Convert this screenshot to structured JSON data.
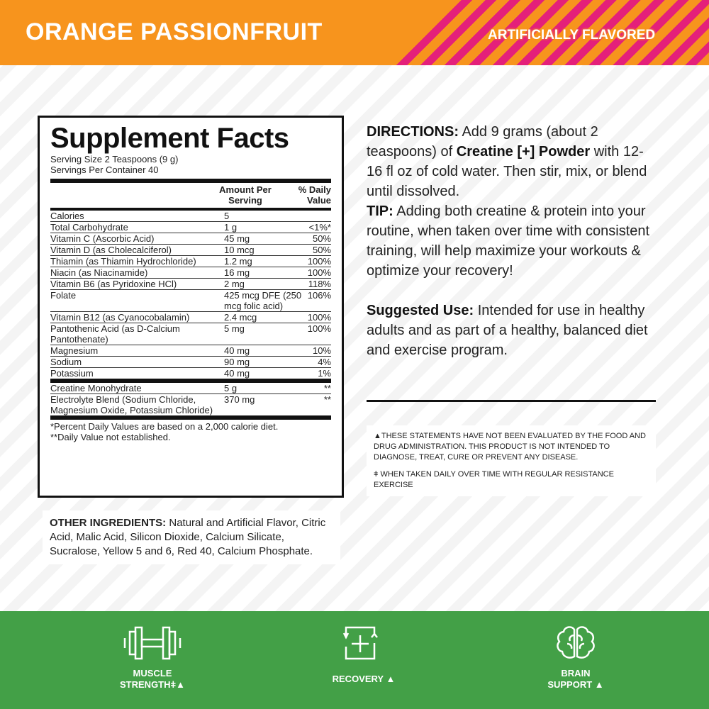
{
  "header": {
    "flavor": "ORANGE PASSIONFRUIT",
    "badge": "ARTIFICIALLY FLAVORED",
    "colors": {
      "orange": "#f7941d",
      "magenta": "#e4207a"
    }
  },
  "facts": {
    "title": "Supplement Facts",
    "serving_size": "Serving Size 2 Teaspoons (9 g)",
    "servings": "Servings Per Container 40",
    "col_amount": "Amount Per Serving",
    "col_dv": "% Daily Value",
    "rows": [
      {
        "name": "Calories",
        "amount": "5",
        "dv": ""
      },
      {
        "name": "Total Carbohydrate",
        "amount": "1 g",
        "dv": "<1%*"
      },
      {
        "name": "Vitamin C (Ascorbic Acid)",
        "amount": "45 mg",
        "dv": "50%"
      },
      {
        "name": "Vitamin D (as Cholecalciferol)",
        "amount": "10 mcg",
        "dv": "50%"
      },
      {
        "name": "Thiamin (as Thiamin Hydrochloride)",
        "amount": "1.2 mg",
        "dv": "100%"
      },
      {
        "name": "Niacin (as Niacinamide)",
        "amount": "16 mg",
        "dv": "100%"
      },
      {
        "name": "Vitamin B6 (as Pyridoxine HCl)",
        "amount": "2 mg",
        "dv": "118%"
      },
      {
        "name": "Folate",
        "amount": "425 mcg DFE (250 mcg folic acid)",
        "dv": "106%"
      },
      {
        "name": "Vitamin B12 (as Cyanocobalamin)",
        "amount": "2.4 mcg",
        "dv": "100%"
      },
      {
        "name": "Pantothenic Acid (as D-Calcium Pantothenate)",
        "amount": "5 mg",
        "dv": "100%"
      },
      {
        "name": "Magnesium",
        "amount": "40 mg",
        "dv": "10%"
      },
      {
        "name": "Sodium",
        "amount": "90 mg",
        "dv": "4%"
      },
      {
        "name": "Potassium",
        "amount": "40 mg",
        "dv": "1%"
      }
    ],
    "rows2": [
      {
        "name": "Creatine Monohydrate",
        "amount": "5 g",
        "dv": "**"
      },
      {
        "name": "Electrolyte Blend (Sodium Chloride, Magnesium Oxide, Potassium Chloride)",
        "amount": "370 mg",
        "dv": "**"
      }
    ],
    "footnote1": "*Percent Daily Values are based on a 2,000 calorie diet.",
    "footnote2": "**Daily Value not established."
  },
  "directions": {
    "label": "DIRECTIONS:",
    "t1": " Add 9 grams (about 2 teaspoons) of ",
    "product": "Creatine [+] Powder",
    "t2": " with 12-16 fl oz of cold water. Then stir, mix, or blend until dissolved."
  },
  "tip": {
    "label": "TIP:",
    "text": " Adding both creatine & protein into your routine, when taken over time with consistent training, will help maximize your workouts & optimize your recovery!"
  },
  "suggested": {
    "label": "Suggested Use:",
    "text": " Intended for use in healthy adults and as part of a healthy, balanced diet and exercise program."
  },
  "disclaimer": {
    "fda": "▲THESE STATEMENTS HAVE NOT BEEN EVALUATED BY THE FOOD AND DRUG ADMINISTRATION. THIS PRODUCT IS NOT INTENDED TO DIAGNOSE, TREAT, CURE OR PREVENT ANY DISEASE.",
    "resistance": "ǂ WHEN TAKEN DAILY OVER TIME WITH REGULAR RESISTANCE EXERCISE"
  },
  "other": {
    "label": "OTHER INGREDIENTS:",
    "text": " Natural and Artificial Flavor, Citric Acid, Malic Acid, Silicon Dioxide, Calcium Silicate, Sucralose, Yellow 5 and 6, Red 40, Calcium Phosphate."
  },
  "footer": {
    "color": "#43a047",
    "features": [
      {
        "icon": "dumbbell-icon",
        "l1": "MUSCLE",
        "l2": "STRENGTHǂ▲"
      },
      {
        "icon": "recovery-icon",
        "l1": "",
        "l2": "RECOVERY ▲"
      },
      {
        "icon": "brain-icon",
        "l1": "BRAIN",
        "l2": "SUPPORT ▲"
      }
    ]
  }
}
